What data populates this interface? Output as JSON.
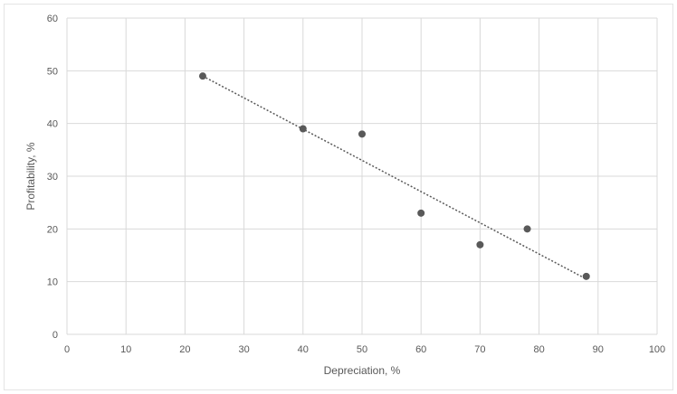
{
  "chart_data": {
    "type": "scatter",
    "title": "",
    "xlabel": "Depreciation, %",
    "ylabel": "Profitability, %",
    "xlim": [
      0,
      100
    ],
    "ylim": [
      0,
      60
    ],
    "x_ticks": [
      0,
      10,
      20,
      30,
      40,
      50,
      60,
      70,
      80,
      90,
      100
    ],
    "y_ticks": [
      0,
      10,
      20,
      30,
      40,
      50,
      60
    ],
    "grid": true,
    "legend": "none",
    "series": [
      {
        "points": [
          {
            "x": 23,
            "y": 49
          },
          {
            "x": 40,
            "y": 39
          },
          {
            "x": 50,
            "y": 38
          },
          {
            "x": 60,
            "y": 23
          },
          {
            "x": 70,
            "y": 17
          },
          {
            "x": 78,
            "y": 20
          },
          {
            "x": 88,
            "y": 11
          }
        ],
        "color": "#595959"
      }
    ],
    "trendline": {
      "type": "linear",
      "style": "dotted",
      "color": "#595959",
      "from": {
        "x": 23,
        "y": 49
      },
      "to": {
        "x": 88,
        "y": 10.5
      }
    },
    "gridline_color": "#d9d9d9"
  }
}
